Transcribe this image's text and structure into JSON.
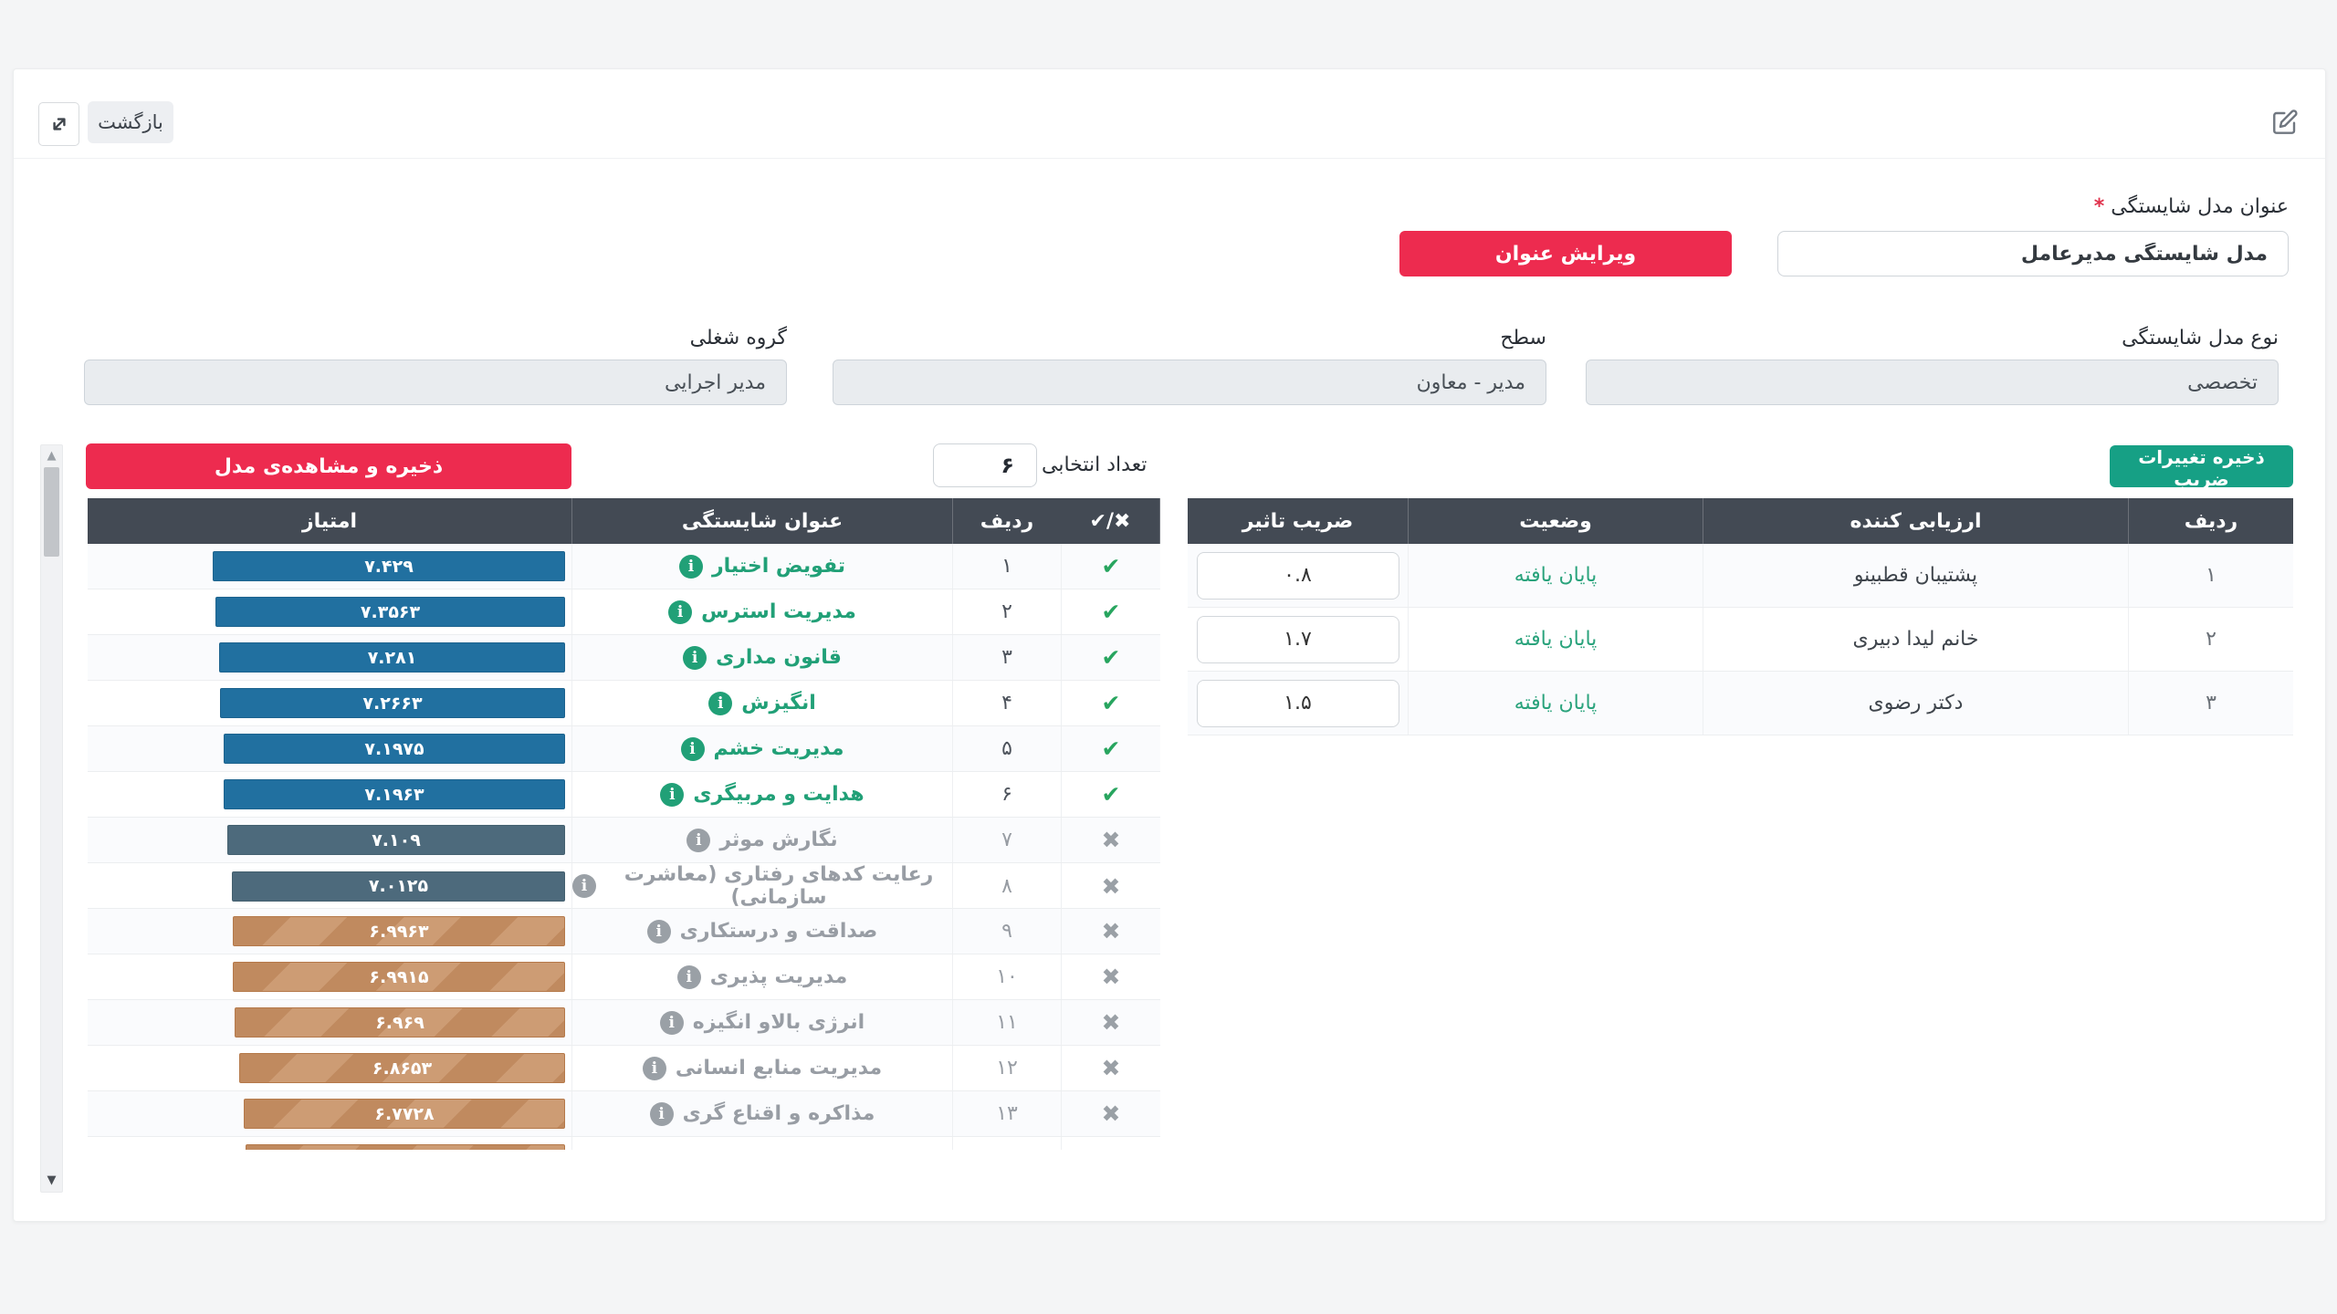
{
  "toolbar": {
    "back_label": "بازگشت"
  },
  "model_form": {
    "title_label": "عنوان مدل شایستگی",
    "required_mark": "*",
    "title_value": "مدل شایستگی مدیرعامل",
    "edit_title_button": "ویرایش عنوان",
    "type_label": "نوع مدل شایستگی",
    "type_value": "تخصصی",
    "level_label": "سطح",
    "level_value": "مدیر - معاون",
    "job_group_label": "گروه شغلی",
    "job_group_value": "مدیر اجرایی"
  },
  "evaluators_panel": {
    "save_coef_button": "ذخیره تغییرات ضریب",
    "columns": [
      "ردیف",
      "ارزیابی کننده",
      "وضعیت",
      "ضریب تاثیر"
    ],
    "rows": [
      {
        "no": "۱",
        "name": "پشتیبان قطبینو",
        "status": "پایان یافته",
        "coef": "۰.۸"
      },
      {
        "no": "۲",
        "name": "خانم لیدا دبیری",
        "status": "پایان یافته",
        "coef": "۱.۷"
      },
      {
        "no": "۳",
        "name": "دکتر رضوی",
        "status": "پایان یافته",
        "coef": "۱.۵"
      }
    ]
  },
  "competencies_panel": {
    "save_view_button": "ذخیره و مشاهده‌ی مدل",
    "selected_count_label": "تعداد انتخابی",
    "selected_count_value": "۶",
    "columns": [
      "✔/✖",
      "ردیف",
      "عنوان شایستگی",
      "امتیاز"
    ],
    "info_icon_glyph": "i",
    "rows": [
      {
        "mark": "✔",
        "selected": true,
        "no": "۱",
        "title": "تفویض اختیار",
        "score_fa": "۷.۴۲۹",
        "score": 7.429,
        "bar": "blue"
      },
      {
        "mark": "✔",
        "selected": true,
        "no": "۲",
        "title": "مدیریت استرس",
        "score_fa": "۷.۳۵۶۳",
        "score": 7.3563,
        "bar": "blue"
      },
      {
        "mark": "✔",
        "selected": true,
        "no": "۳",
        "title": "قانون مداری",
        "score_fa": "۷.۲۸۱",
        "score": 7.281,
        "bar": "blue"
      },
      {
        "mark": "✔",
        "selected": true,
        "no": "۴",
        "title": "انگیزش",
        "score_fa": "۷.۲۶۶۳",
        "score": 7.2663,
        "bar": "blue"
      },
      {
        "mark": "✔",
        "selected": true,
        "no": "۵",
        "title": "مدیریت خشم",
        "score_fa": "۷.۱۹۷۵",
        "score": 7.1975,
        "bar": "blue"
      },
      {
        "mark": "✔",
        "selected": true,
        "no": "۶",
        "title": "هدایت و مربیگری",
        "score_fa": "۷.۱۹۶۳",
        "score": 7.1963,
        "bar": "blue"
      },
      {
        "mark": "✖",
        "selected": false,
        "no": "۷",
        "title": "نگارش موثر",
        "score_fa": "۷.۱۰۹",
        "score": 7.109,
        "bar": "slate"
      },
      {
        "mark": "✖",
        "selected": false,
        "no": "۸",
        "title": "رعایت کدهای رفتاری (معاشرت سازمانی)",
        "score_fa": "۷.۰۱۲۵",
        "score": 7.0125,
        "bar": "slate"
      },
      {
        "mark": "✖",
        "selected": false,
        "no": "۹",
        "title": "صداقت و درستکاری",
        "score_fa": "۶.۹۹۶۳",
        "score": 6.9963,
        "bar": "striped"
      },
      {
        "mark": "✖",
        "selected": false,
        "no": "۱۰",
        "title": "مدیریت پذیری",
        "score_fa": "۶.۹۹۱۵",
        "score": 6.9915,
        "bar": "striped"
      },
      {
        "mark": "✖",
        "selected": false,
        "no": "۱۱",
        "title": "انرژی بالاو انگیزه",
        "score_fa": "۶.۹۶۹",
        "score": 6.969,
        "bar": "striped"
      },
      {
        "mark": "✖",
        "selected": false,
        "no": "۱۲",
        "title": "مدیریت منابع انسانی",
        "score_fa": "۶.۸۶۵۳",
        "score": 6.8653,
        "bar": "striped"
      },
      {
        "mark": "✖",
        "selected": false,
        "no": "۱۳",
        "title": "مذاکره و اقناع گری",
        "score_fa": "۶.۷۷۲۸",
        "score": 6.7728,
        "bar": "striped"
      }
    ]
  },
  "colors": {
    "accent_red": "#ed2b4f",
    "accent_green": "#16a085",
    "status_green": "#2aa37c",
    "selected_green": "#21a077",
    "header_dark": "#434a54",
    "bar_blue": "#2170a0",
    "bar_slate": "#4d6a7c",
    "bar_brown": "#c08a5f",
    "page_bg": "#f4f5f6"
  }
}
